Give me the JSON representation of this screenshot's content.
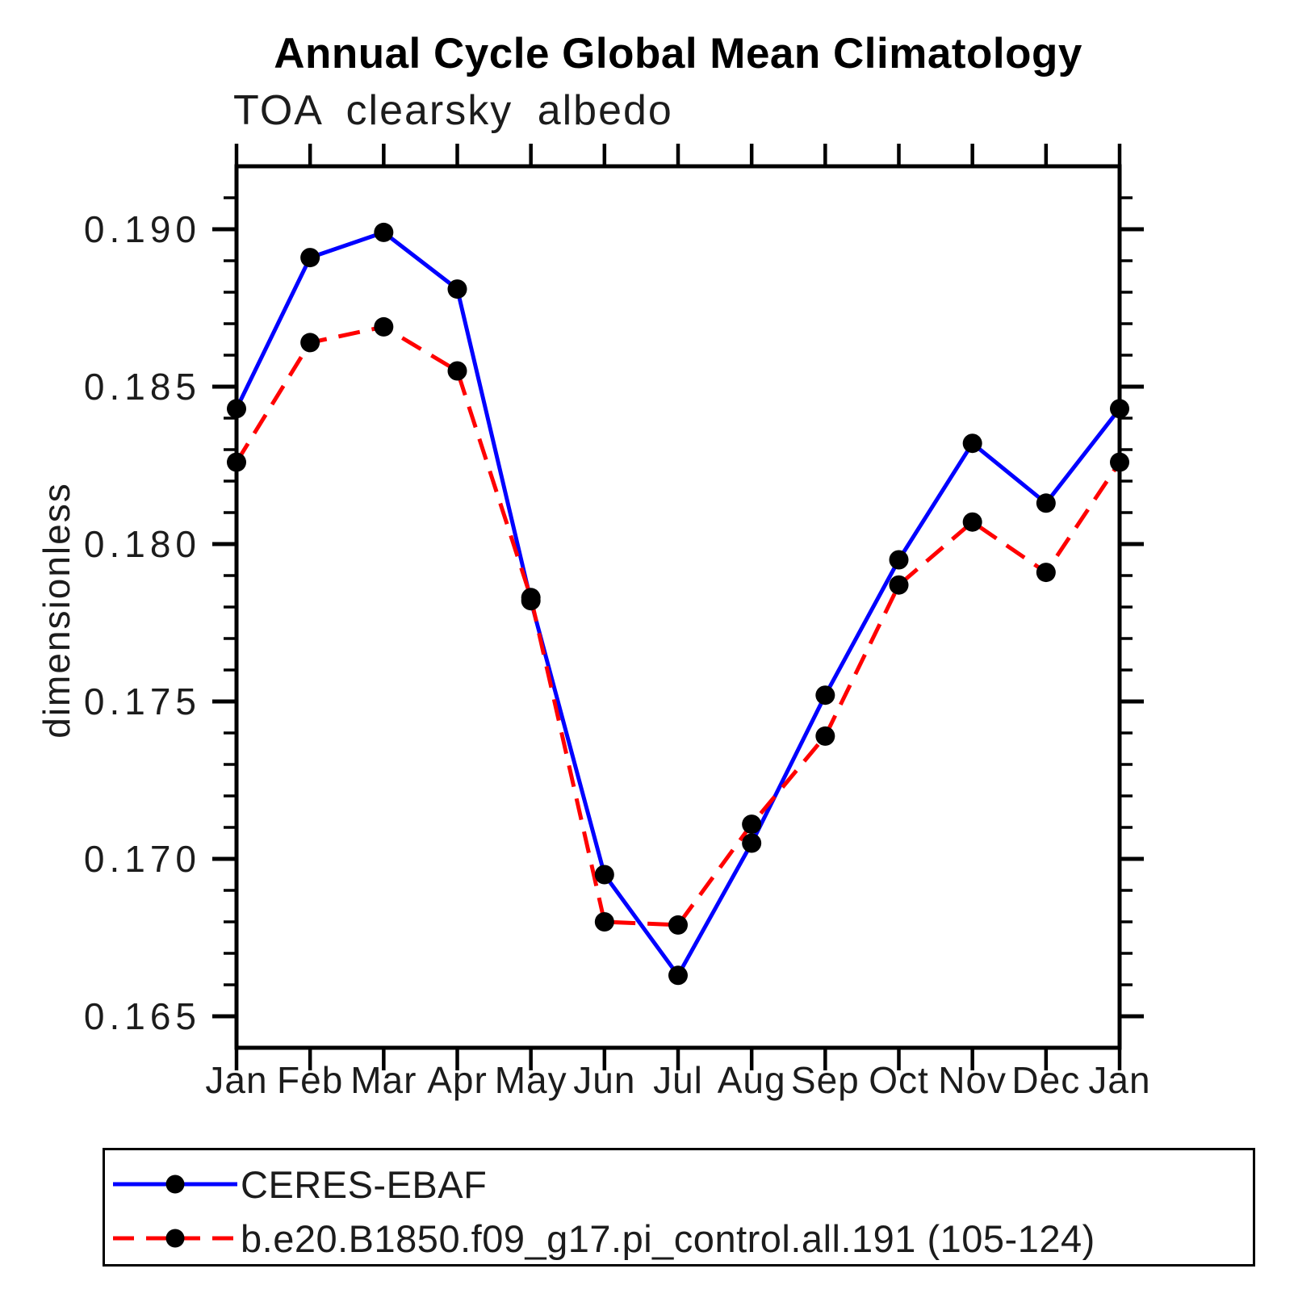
{
  "chart_data": {
    "type": "line",
    "title": "Annual Cycle Global Mean Climatology",
    "subtitle": "TOA clearsky albedo",
    "ylabel": "dimensionless",
    "xlabel": "",
    "categories": [
      "Jan",
      "Feb",
      "Mar",
      "Apr",
      "May",
      "Jun",
      "Jul",
      "Aug",
      "Sep",
      "Oct",
      "Nov",
      "Dec",
      "Jan"
    ],
    "ylim": [
      0.164,
      0.192
    ],
    "y_major_ticks": [
      0.165,
      0.17,
      0.175,
      0.18,
      0.185,
      0.19
    ],
    "y_tick_labels": [
      "0.165",
      "0.170",
      "0.175",
      "0.180",
      "0.185",
      "0.190"
    ],
    "y_minor_step": 0.001,
    "grid": false,
    "legend_position": "bottom",
    "marker": "filled-circle",
    "marker_color": "#000000",
    "series": [
      {
        "name": "CERES-EBAF",
        "color": "#0000ff",
        "line_style": "solid",
        "values": [
          0.1843,
          0.1891,
          0.1899,
          0.1881,
          0.1782,
          0.1695,
          0.1663,
          0.1705,
          0.1752,
          0.1795,
          0.1832,
          0.1813,
          0.1843
        ]
      },
      {
        "name": "b.e20.B1850.f09_g17.pi_control.all.191 (105-124)",
        "color": "#ff0000",
        "line_style": "dashed",
        "values": [
          0.1826,
          0.1864,
          0.1869,
          0.1855,
          0.1783,
          0.168,
          0.1679,
          0.1711,
          0.1739,
          0.1787,
          0.1807,
          0.1791,
          0.1826
        ]
      }
    ]
  }
}
